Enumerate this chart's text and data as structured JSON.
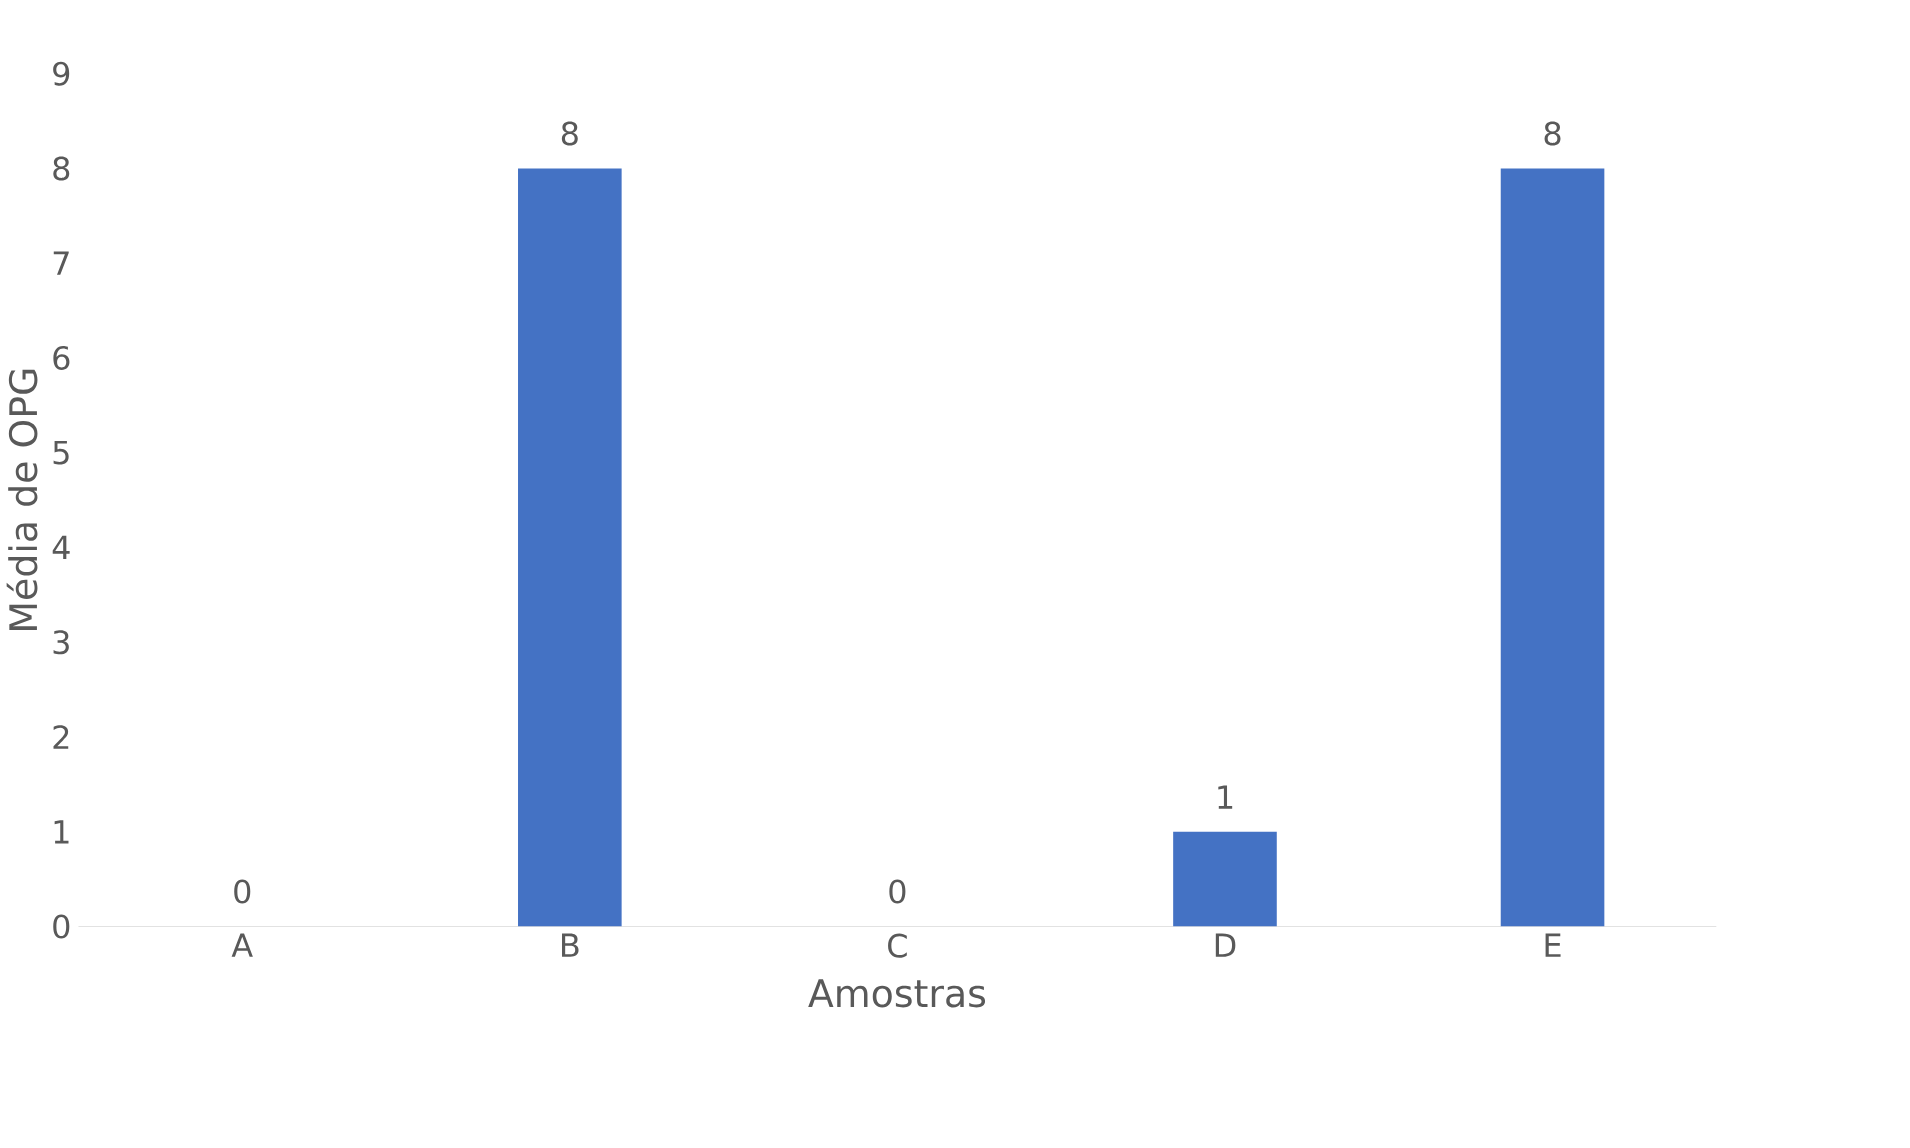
{
  "chart_data": {
    "type": "bar",
    "xlabel": "Amostras",
    "ylabel": "Média de OPG",
    "categories": [
      "A",
      "B",
      "C",
      "D",
      "E"
    ],
    "values": [
      0,
      8,
      0,
      1,
      8
    ],
    "color": "#4472c4",
    "ylim": [
      0,
      9
    ],
    "yticks": [
      0,
      1,
      2,
      3,
      4,
      5,
      6,
      7,
      8,
      9
    ],
    "data_labels": true,
    "grid": false
  }
}
